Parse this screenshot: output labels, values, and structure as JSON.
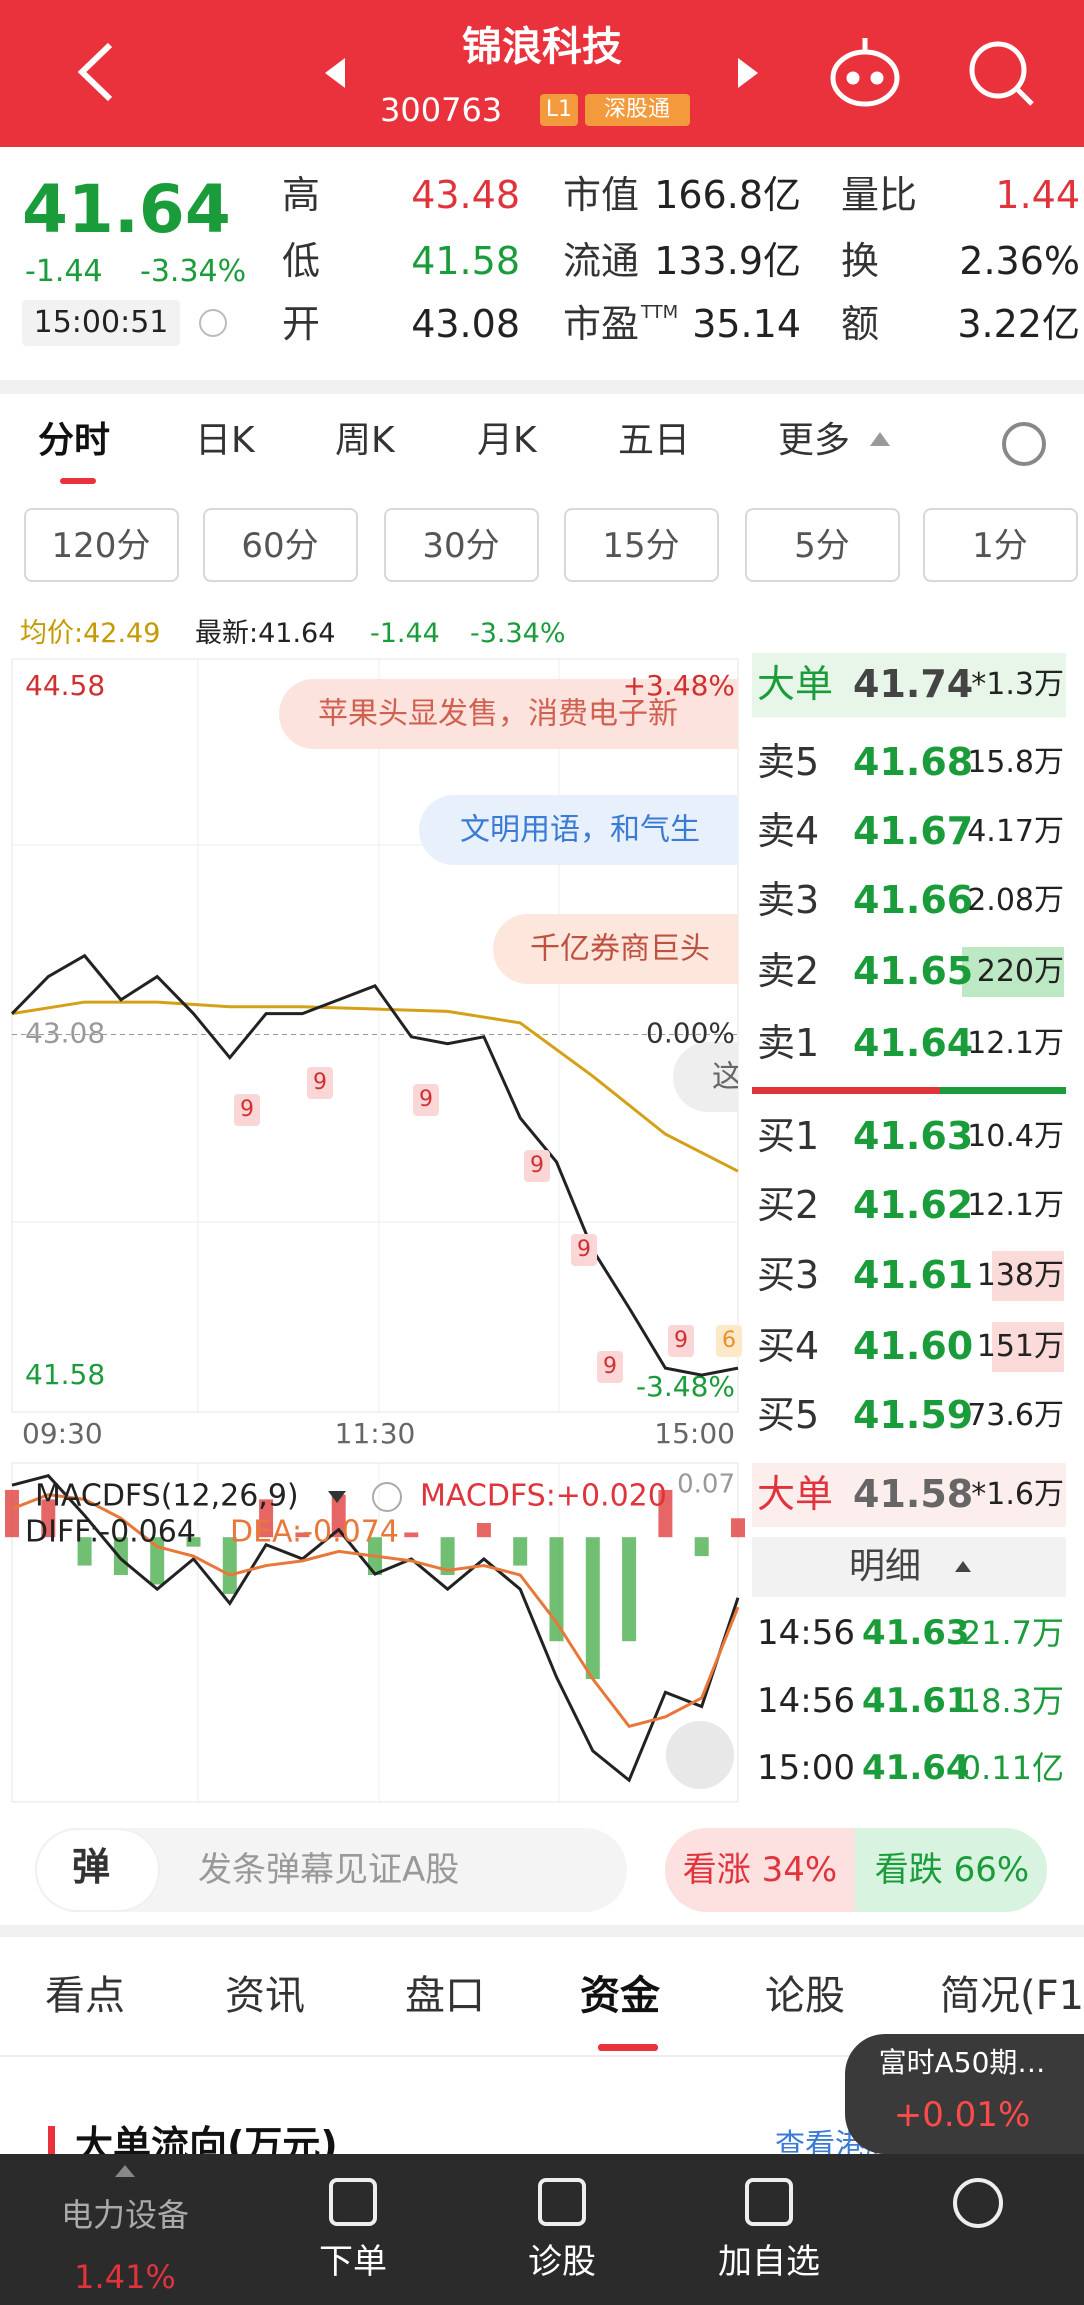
{
  "header": {
    "title": "锦浪科技",
    "code": "300763",
    "badges": [
      "L1",
      "深股通"
    ]
  },
  "quote": {
    "price": "41.64",
    "change": "-1.44",
    "change_pct": "-3.34%",
    "time": "15:00:51",
    "stats": [
      {
        "label": "高",
        "value": "43.48"
      },
      {
        "label": "低",
        "value": "41.58"
      },
      {
        "label": "开",
        "value": "43.08"
      },
      {
        "label": "市值",
        "value": "166.8亿"
      },
      {
        "label": "流通",
        "value": "133.9亿"
      },
      {
        "label": "市盈",
        "sup": "TTM",
        "value": "35.14"
      },
      {
        "label": "量比",
        "value": "1.44"
      },
      {
        "label": "换",
        "value": "2.36%"
      },
      {
        "label": "额",
        "value": "3.22亿"
      }
    ]
  },
  "tabs": [
    "分时",
    "日K",
    "周K",
    "月K",
    "五日",
    "更多"
  ],
  "periods": [
    "120分",
    "60分",
    "30分",
    "15分",
    "5分",
    "1分"
  ],
  "info": {
    "avg": "均价:42.49",
    "latest": "最新:41.64",
    "change": "-1.44",
    "change_pct": "-3.34%"
  },
  "chart_data": [
    {
      "type": "line",
      "xlim": [
        0,
        240
      ],
      "xticks": [
        {
          "value": 0,
          "label": "09:30"
        },
        {
          "value": 120,
          "label": "11:30"
        },
        {
          "value": 240,
          "label": "15:00"
        }
      ],
      "ylim": [
        41.58,
        44.58
      ],
      "yticks": [
        44.58,
        43.08,
        41.58
      ],
      "y2lim": [
        -3.48,
        3.48
      ],
      "y2ticks": [
        {
          "value": 3.48,
          "label": "+3.48%"
        },
        {
          "value": 0,
          "label": "0.00%"
        },
        {
          "value": -3.48,
          "label": "-3.48%"
        }
      ],
      "series": [
        {
          "color": "#222222",
          "x": [
            0,
            12,
            24,
            36,
            48,
            60,
            72,
            84,
            96,
            108,
            120,
            132,
            144,
            156,
            168,
            180,
            192,
            204,
            216,
            228,
            240
          ],
          "values": [
            43.17,
            43.33,
            43.42,
            43.23,
            43.33,
            43.17,
            42.98,
            43.17,
            43.17,
            43.23,
            43.29,
            43.07,
            43.04,
            43.07,
            42.72,
            42.53,
            42.15,
            41.9,
            41.64,
            41.61,
            41.64
          ]
        },
        {
          "color": "#d4a017",
          "x": [
            0,
            24,
            48,
            72,
            96,
            120,
            144,
            168,
            192,
            216,
            240
          ],
          "values": [
            43.17,
            43.22,
            43.22,
            43.2,
            43.2,
            43.19,
            43.18,
            43.13,
            42.9,
            42.65,
            42.49
          ]
        }
      ],
      "annotations": [
        "苹果头显发售，消费电子新",
        "文明用语，和气生",
        "千亿券商巨头",
        "这"
      ],
      "signals": [
        "9",
        "9",
        "9",
        "9",
        "9",
        "9",
        "9",
        "6"
      ]
    },
    {
      "type": "combo",
      "title": "MACDFS(12,26,9)",
      "labels": {
        "macd": "MACDFS:+0.020",
        "diff": "DIFF:-0.064",
        "dea": "DEA:-0.074"
      },
      "xlim": [
        0,
        240
      ],
      "ylim": [
        -0.28,
        0.07
      ],
      "yticks": [
        0.07
      ],
      "x": [
        0,
        12,
        24,
        36,
        48,
        60,
        72,
        84,
        96,
        108,
        120,
        132,
        144,
        156,
        168,
        180,
        192,
        204,
        216,
        228,
        240
      ],
      "series": [
        {
          "type": "bar",
          "color": "#e04040",
          "negative_color": "#4caf50",
          "values": [
            0.05,
            0.04,
            -0.03,
            -0.04,
            -0.05,
            -0.01,
            -0.06,
            0.04,
            0.005,
            0.045,
            -0.04,
            0.005,
            -0.04,
            0.015,
            -0.03,
            -0.11,
            -0.15,
            -0.11,
            0.05,
            -0.02,
            0.02
          ]
        },
        {
          "type": "line",
          "color": "#222222",
          "values": [
            0.055,
            0.065,
            0.023,
            -0.023,
            -0.055,
            -0.023,
            -0.07,
            -0.008,
            -0.023,
            0.008,
            -0.039,
            -0.023,
            -0.055,
            -0.023,
            -0.055,
            -0.148,
            -0.226,
            -0.257,
            -0.164,
            -0.179,
            -0.064
          ]
        },
        {
          "type": "line",
          "color": "#e8783a",
          "values": [
            0.03,
            0.045,
            0.04,
            0.02,
            -0.01,
            -0.02,
            -0.04,
            -0.03,
            -0.025,
            -0.015,
            -0.02,
            -0.025,
            -0.035,
            -0.03,
            -0.04,
            -0.09,
            -0.15,
            -0.2,
            -0.19,
            -0.17,
            -0.074
          ]
        }
      ]
    }
  ],
  "book": {
    "big_sell": [
      "大单",
      "41.74",
      "*1.3万"
    ],
    "asks": [
      [
        "卖5",
        "41.68",
        "15.8万"
      ],
      [
        "卖4",
        "41.67",
        "4.17万"
      ],
      [
        "卖3",
        "41.66",
        "2.08万"
      ],
      [
        "卖2",
        "41.65",
        "220万"
      ],
      [
        "卖1",
        "41.64",
        "12.1万"
      ]
    ],
    "bids": [
      [
        "买1",
        "41.63",
        "10.4万"
      ],
      [
        "买2",
        "41.62",
        "12.1万"
      ],
      [
        "买3",
        "41.61",
        "138万"
      ],
      [
        "买4",
        "41.60",
        "151万"
      ],
      [
        "买5",
        "41.59",
        "73.6万"
      ]
    ],
    "big_buy": [
      "大单",
      "41.58",
      "*1.6万"
    ],
    "detail_title": "明细",
    "trades": [
      [
        "14:56",
        "41.63",
        "21.7万"
      ],
      [
        "14:56",
        "41.61",
        "18.3万"
      ],
      [
        "15:00",
        "41.64",
        "0.11亿"
      ]
    ]
  },
  "danmaku": {
    "icon": "弹",
    "placeholder": "发条弹幕见证A股",
    "up": "看涨 34%",
    "down": "看跌 66%"
  },
  "sections": [
    "看点",
    "资讯",
    "盘口",
    "资金",
    "论股",
    "简况(F1"
  ],
  "section": {
    "title": "大单流向(万元)",
    "link": "查看港股通"
  },
  "float": {
    "name": "富时A50期…",
    "change": "+0.01%"
  },
  "nav": [
    {
      "label": "电力设备",
      "sub": "1.41%"
    },
    {
      "label": "下单"
    },
    {
      "label": "诊股"
    },
    {
      "label": "加自选"
    }
  ]
}
